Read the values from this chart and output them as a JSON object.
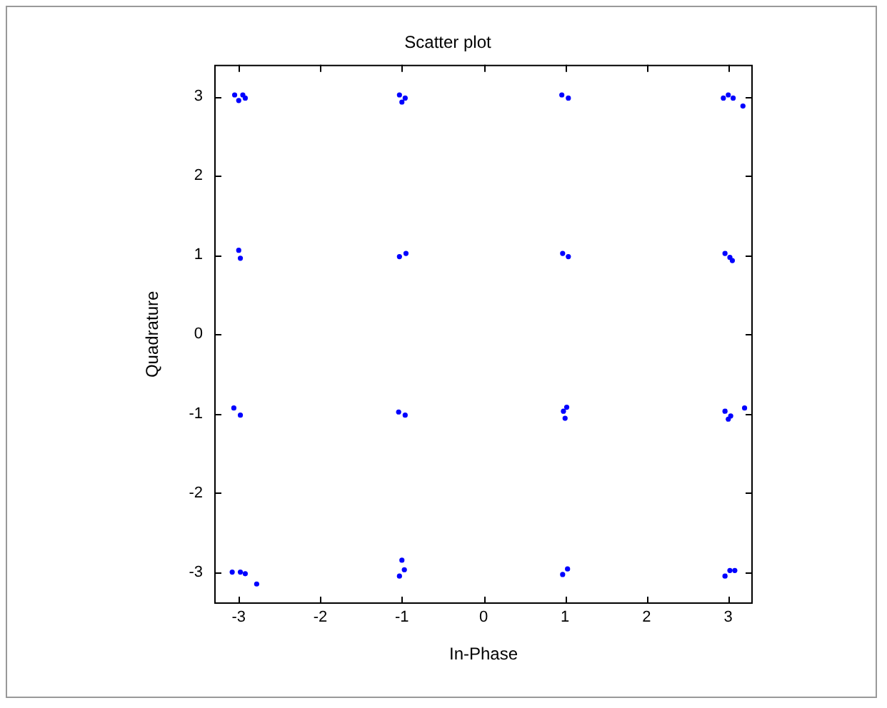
{
  "chart_data": {
    "type": "scatter",
    "title": "Scatter plot",
    "xlabel": "In-Phase",
    "ylabel": "Quadrature",
    "xlim": [
      -3.3,
      3.3
    ],
    "ylim": [
      -3.4,
      3.4
    ],
    "xticks": [
      -3,
      -2,
      -1,
      0,
      1,
      2,
      3
    ],
    "yticks": [
      -3,
      -2,
      -1,
      0,
      1,
      2,
      3
    ],
    "grid": false,
    "marker": "circle",
    "series": [
      {
        "color": "#0000ff",
        "x": [
          -3.05,
          -2.95,
          -3.0,
          -2.92,
          -1.03,
          -0.96,
          -1.0,
          0.96,
          1.04,
          3.0,
          2.94,
          3.06,
          3.18,
          -3.0,
          -2.98,
          -1.03,
          -0.95,
          0.97,
          1.04,
          2.96,
          3.02,
          3.05,
          -3.06,
          -2.98,
          -1.04,
          -0.96,
          0.98,
          1.02,
          1.0,
          2.96,
          3.03,
          3.0,
          3.2,
          -3.08,
          -2.98,
          -2.92,
          -2.78,
          -1.03,
          -0.97,
          -1.0,
          0.97,
          1.03,
          2.96,
          3.02,
          3.08
        ],
        "values": [
          3.02,
          3.02,
          2.95,
          2.98,
          3.02,
          2.98,
          2.93,
          3.02,
          2.98,
          3.02,
          2.98,
          2.98,
          2.88,
          1.06,
          0.96,
          0.98,
          1.02,
          1.02,
          0.98,
          1.02,
          0.97,
          0.93,
          -0.93,
          -1.02,
          -0.98,
          -1.02,
          -0.97,
          -0.92,
          -1.06,
          -0.97,
          -1.03,
          -1.07,
          -0.93,
          -3.0,
          -3.0,
          -3.02,
          -3.15,
          -3.05,
          -2.97,
          -2.85,
          -3.03,
          -2.96,
          -3.05,
          -2.98,
          -2.98
        ]
      }
    ]
  }
}
